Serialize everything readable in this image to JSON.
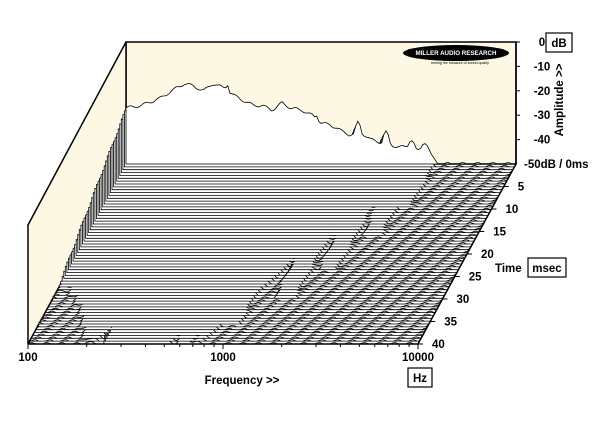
{
  "chart_data": {
    "type": "area",
    "title": "",
    "xlabel": "Frequency >>",
    "x_unit": "Hz",
    "x_scale": "log",
    "xlim": [
      100,
      10000
    ],
    "x_ticks": [
      {
        "value": 100,
        "label": "100"
      },
      {
        "value": 1000,
        "label": "1000"
      },
      {
        "value": 10000,
        "label": "10000"
      }
    ],
    "ylabel": "Amplitude >>",
    "y_unit": "dB",
    "ylim": [
      -50,
      0
    ],
    "y_ticks": [
      {
        "value": 0,
        "label": "0"
      },
      {
        "value": -10,
        "label": "-10"
      },
      {
        "value": -20,
        "label": "-20"
      },
      {
        "value": -30,
        "label": "-30"
      },
      {
        "value": -40,
        "label": "-40"
      }
    ],
    "y_floor_label": "-50dB / 0ms",
    "zlabel": "Time",
    "z_unit": "msec",
    "zlim": [
      0,
      40
    ],
    "z_ticks": [
      {
        "value": 5,
        "label": "5"
      },
      {
        "value": 10,
        "label": "10"
      },
      {
        "value": 15,
        "label": "15"
      },
      {
        "value": 20,
        "label": "20"
      },
      {
        "value": 25,
        "label": "25"
      },
      {
        "value": 30,
        "label": "30"
      },
      {
        "value": 35,
        "label": "35"
      },
      {
        "value": 40,
        "label": "40"
      }
    ],
    "slice_count": 64,
    "initial_response_db": [
      [
        100,
        -27
      ],
      [
        120,
        -26
      ],
      [
        150,
        -23
      ],
      [
        180,
        -19
      ],
      [
        200,
        -17
      ],
      [
        220,
        -18
      ],
      [
        250,
        -20
      ],
      [
        280,
        -17
      ],
      [
        320,
        -19
      ],
      [
        360,
        -22
      ],
      [
        400,
        -24
      ],
      [
        450,
        -26
      ],
      [
        500,
        -26
      ],
      [
        560,
        -28
      ],
      [
        630,
        -25
      ],
      [
        700,
        -27
      ],
      [
        800,
        -28
      ],
      [
        900,
        -30
      ],
      [
        1000,
        -33
      ],
      [
        1100,
        -34
      ],
      [
        1200,
        -35
      ],
      [
        1300,
        -37
      ],
      [
        1400,
        -38
      ],
      [
        1600,
        -37
      ],
      [
        1800,
        -40
      ],
      [
        2000,
        -41
      ],
      [
        2200,
        -42
      ],
      [
        2500,
        -43
      ],
      [
        2800,
        -43
      ],
      [
        3000,
        -44
      ],
      [
        3300,
        -45
      ],
      [
        3600,
        -46
      ],
      [
        4000,
        -50
      ],
      [
        10000,
        -50
      ]
    ],
    "resonances": [
      {
        "freq_hz": 330,
        "level_db": -17,
        "decay_ms": 40
      },
      {
        "freq_hz": 950,
        "level_db": -30,
        "decay_ms": 36
      },
      {
        "freq_hz": 1550,
        "level_db": -33,
        "decay_ms": 30
      },
      {
        "freq_hz": 2150,
        "level_db": -37,
        "decay_ms": 24
      },
      {
        "freq_hz": 2900,
        "level_db": -40,
        "decay_ms": 16
      },
      {
        "freq_hz": 3400,
        "level_db": -41,
        "decay_ms": 10
      }
    ],
    "grid": false,
    "background_color": "#fcf8e4",
    "trace_color": "#000000"
  },
  "logo": {
    "name": "MILLER AUDIO RESEARCH",
    "tagline": "testing the measure of sound quality"
  }
}
